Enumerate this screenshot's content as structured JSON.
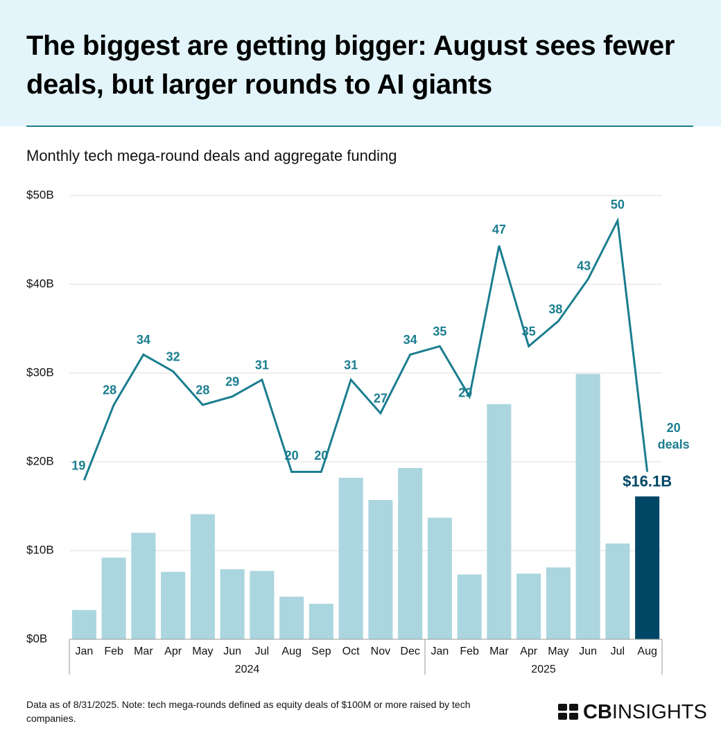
{
  "chart_data": {
    "type": "bar",
    "title": "The biggest are getting bigger: August sees fewer deals, but larger rounds to AI giants",
    "subtitle": "Monthly tech mega-round deals and aggregate funding",
    "categories": [
      "Jan",
      "Feb",
      "Mar",
      "Apr",
      "May",
      "Jun",
      "Jul",
      "Aug",
      "Sep",
      "Oct",
      "Nov",
      "Dec",
      "Jan",
      "Feb",
      "Mar",
      "Apr",
      "May",
      "Jun",
      "Jul",
      "Aug"
    ],
    "groups": [
      {
        "label": "2024",
        "size": 12
      },
      {
        "label": "2025",
        "size": 8
      }
    ],
    "series": [
      {
        "type": "bar",
        "color": "#abd6df",
        "colors": [
          "#abd6df",
          "#abd6df",
          "#abd6df",
          "#abd6df",
          "#abd6df",
          "#abd6df",
          "#abd6df",
          "#abd6df",
          "#abd6df",
          "#abd6df",
          "#abd6df",
          "#abd6df",
          "#abd6df",
          "#abd6df",
          "#abd6df",
          "#abd6df",
          "#abd6df",
          "#abd6df",
          "#abd6df",
          "#004766"
        ],
        "values": [
          3.3,
          9.2,
          12.0,
          7.6,
          14.1,
          7.9,
          7.7,
          4.8,
          4.0,
          18.2,
          15.7,
          19.3,
          13.7,
          7.3,
          26.5,
          7.4,
          8.1,
          29.9,
          10.8,
          16.1
        ],
        "value_labels": [
          null,
          null,
          null,
          null,
          null,
          null,
          null,
          null,
          null,
          null,
          null,
          null,
          null,
          null,
          null,
          null,
          null,
          null,
          null,
          "$16.1B"
        ]
      },
      {
        "type": "line",
        "axis": "y2",
        "color": "#1a7d8f",
        "values": [
          19,
          28,
          34,
          32,
          28,
          29,
          31,
          20,
          20,
          31,
          27,
          34,
          35,
          29,
          47,
          35,
          38,
          43,
          50,
          20
        ],
        "annotation": "deals"
      }
    ],
    "ylim": [
      0,
      50
    ],
    "yticks": [
      {
        "value": 0,
        "label": "$0B"
      },
      {
        "value": 10,
        "label": "$10B"
      },
      {
        "value": 20,
        "label": "$20B"
      },
      {
        "value": 30,
        "label": "$30B"
      },
      {
        "value": 40,
        "label": "$40B"
      },
      {
        "value": 50,
        "label": "$50B"
      }
    ],
    "y2lim": [
      0,
      53
    ],
    "grid": true
  },
  "footnote": "Data as of 8/31/2025. Note: tech mega-rounds defined as equity deals of $100M or more raised by tech companies.",
  "logo": {
    "bold": "CB",
    "text": "INSIGHTS"
  }
}
